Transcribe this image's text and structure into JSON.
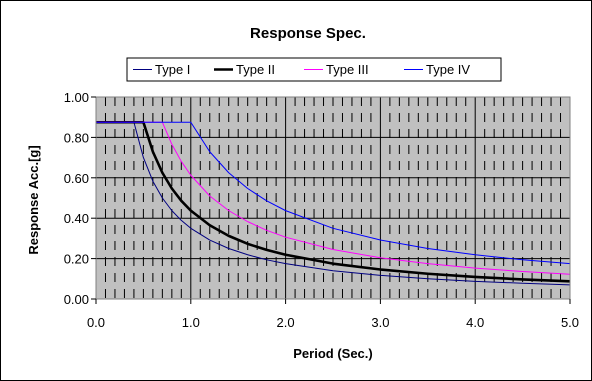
{
  "chart_data": {
    "type": "line",
    "title": "Response Spec.",
    "xlabel": "Period (Sec.)",
    "ylabel": "Response Acc.[g]",
    "xlim": [
      0,
      5
    ],
    "ylim": [
      0,
      1
    ],
    "x_ticks": [
      "0.0",
      "1.0",
      "2.0",
      "3.0",
      "4.0",
      "5.0"
    ],
    "y_ticks": [
      "0.00",
      "0.20",
      "0.40",
      "0.60",
      "0.80",
      "1.00"
    ],
    "x_tick_values": [
      0,
      1,
      2,
      3,
      4,
      5
    ],
    "y_tick_values": [
      0,
      0.2,
      0.4,
      0.6,
      0.8,
      1.0
    ],
    "grid": true,
    "plot_background": "#c0c0c0",
    "legend_position": "top",
    "series": [
      {
        "name": "Type I",
        "color": "#000080",
        "bold": false,
        "x": [
          0,
          0.4,
          0.5,
          0.6,
          0.7,
          0.8,
          0.9,
          1.0,
          1.2,
          1.4,
          1.6,
          1.8,
          2.0,
          2.5,
          3.0,
          3.5,
          4.0,
          4.5,
          5.0
        ],
        "values": [
          0.875,
          0.875,
          0.7,
          0.583,
          0.5,
          0.4375,
          0.389,
          0.35,
          0.292,
          0.25,
          0.219,
          0.194,
          0.175,
          0.14,
          0.117,
          0.1,
          0.0875,
          0.0778,
          0.07
        ]
      },
      {
        "name": "Type II",
        "color": "#000000",
        "bold": true,
        "x": [
          0,
          0.5,
          0.6,
          0.7,
          0.8,
          0.9,
          1.0,
          1.2,
          1.4,
          1.6,
          1.8,
          2.0,
          2.5,
          3.0,
          3.5,
          4.0,
          4.5,
          5.0
        ],
        "values": [
          0.875,
          0.875,
          0.729,
          0.625,
          0.547,
          0.486,
          0.4375,
          0.365,
          0.3125,
          0.273,
          0.243,
          0.219,
          0.175,
          0.146,
          0.125,
          0.109,
          0.097,
          0.0875
        ]
      },
      {
        "name": "Type III",
        "color": "#ff00ff",
        "bold": false,
        "x": [
          0,
          0.7,
          0.8,
          0.9,
          1.0,
          1.2,
          1.4,
          1.6,
          1.8,
          2.0,
          2.5,
          3.0,
          3.5,
          4.0,
          4.5,
          5.0
        ],
        "values": [
          0.875,
          0.875,
          0.766,
          0.681,
          0.6125,
          0.51,
          0.4375,
          0.383,
          0.34,
          0.306,
          0.245,
          0.204,
          0.175,
          0.153,
          0.136,
          0.1225
        ]
      },
      {
        "name": "Type IV",
        "color": "#0000ff",
        "bold": false,
        "x": [
          0,
          1.0,
          1.2,
          1.4,
          1.6,
          1.8,
          2.0,
          2.5,
          3.0,
          3.5,
          4.0,
          4.5,
          5.0
        ],
        "values": [
          0.875,
          0.875,
          0.729,
          0.625,
          0.547,
          0.486,
          0.4375,
          0.35,
          0.292,
          0.25,
          0.219,
          0.194,
          0.175
        ]
      }
    ]
  }
}
